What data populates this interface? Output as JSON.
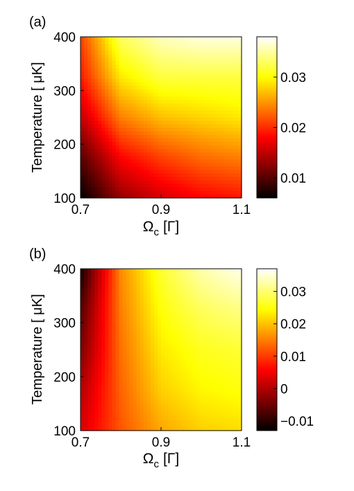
{
  "chart_data": [
    {
      "type": "heatmap",
      "panel_label": "(a)",
      "xlabel_symbol": "Ω",
      "xlabel_sub": "c",
      "xlabel_unit": "[Γ]",
      "ylabel": "Temperature [ μK]",
      "xlim": [
        0.7,
        1.1
      ],
      "ylim": [
        100,
        400
      ],
      "xticks": [
        0.7,
        0.9,
        1.1
      ],
      "xtick_labels": [
        "0.7",
        "0.9",
        "1.1"
      ],
      "yticks": [
        100,
        200,
        300,
        400
      ],
      "ytick_labels": [
        "100",
        "200",
        "300",
        "400"
      ],
      "x": [
        0.7,
        0.8,
        0.9,
        1.0,
        1.1
      ],
      "y": [
        100,
        175,
        250,
        325,
        400
      ],
      "z": [
        [
          0.006,
          0.013,
          0.016,
          0.018,
          0.019
        ],
        [
          0.01,
          0.018,
          0.021,
          0.023,
          0.024
        ],
        [
          0.015,
          0.024,
          0.027,
          0.028,
          0.029
        ],
        [
          0.019,
          0.029,
          0.032,
          0.032,
          0.032
        ],
        [
          0.021,
          0.033,
          0.036,
          0.037,
          0.037
        ]
      ],
      "colorbar": {
        "colormap": "hot",
        "range": [
          0.006,
          0.038
        ],
        "ticks": [
          0.01,
          0.02,
          0.03
        ],
        "tick_labels": [
          "0.01",
          "0.02",
          "0.03"
        ]
      }
    },
    {
      "type": "heatmap",
      "panel_label": "(b)",
      "xlabel_symbol": "Ω",
      "xlabel_sub": "c",
      "xlabel_unit": "[Γ]",
      "ylabel": "Temperature [ μK]",
      "xlim": [
        0.7,
        1.1
      ],
      "ylim": [
        100,
        400
      ],
      "xticks": [
        0.7,
        0.9,
        1.1
      ],
      "xtick_labels": [
        "0.7",
        "0.9",
        "1.1"
      ],
      "yticks": [
        100,
        200,
        300,
        400
      ],
      "ytick_labels": [
        "100",
        "200",
        "300",
        "400"
      ],
      "x": [
        0.7,
        0.8,
        0.9,
        1.0,
        1.1
      ],
      "y": [
        100,
        175,
        250,
        325,
        400
      ],
      "z": [
        [
          0.003,
          0.012,
          0.018,
          0.021,
          0.022
        ],
        [
          0.0,
          0.013,
          0.021,
          0.024,
          0.025
        ],
        [
          -0.004,
          0.014,
          0.023,
          0.026,
          0.027
        ],
        [
          -0.007,
          0.015,
          0.025,
          0.029,
          0.031
        ],
        [
          -0.012,
          0.016,
          0.027,
          0.033,
          0.036
        ]
      ],
      "colorbar": {
        "colormap": "hot",
        "range": [
          -0.013,
          0.037
        ],
        "ticks": [
          -0.01,
          0,
          0.01,
          0.02,
          0.03
        ],
        "tick_labels": [
          "−0.01",
          "0",
          "0.01",
          "0.02",
          "0.03"
        ]
      }
    }
  ]
}
